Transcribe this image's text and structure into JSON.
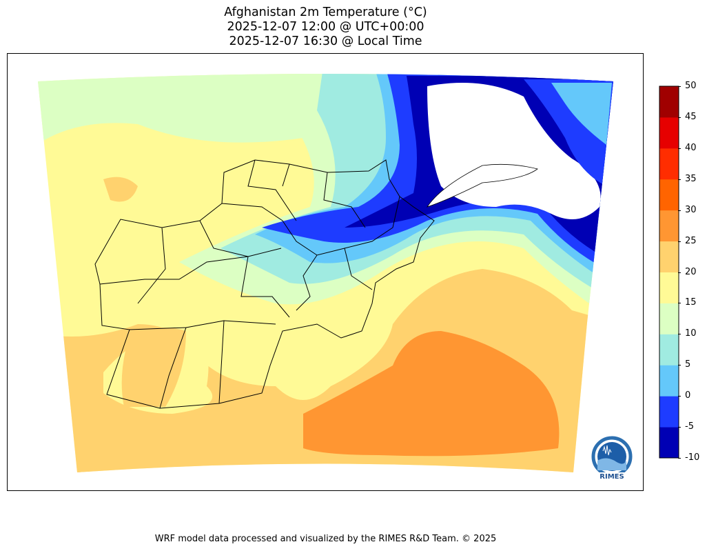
{
  "title": {
    "line1": "Afghanistan 2m Temperature (°C)",
    "line2": "2025-12-07 12:00 @ UTC+00:00",
    "line3": "2025-12-07 16:30 @ Local Time"
  },
  "colorbar": {
    "ticks": [
      "50",
      "45",
      "40",
      "35",
      "30",
      "25",
      "20",
      "15",
      "10",
      "5",
      "0",
      "-5",
      "-10"
    ],
    "levels": [
      -10,
      -5,
      0,
      5,
      10,
      15,
      20,
      25,
      30,
      35,
      40,
      45,
      50
    ],
    "colors": [
      "#0000b4",
      "#1e3cff",
      "#64c8fa",
      "#a0ebe1",
      "#dcffc3",
      "#fffa96",
      "#ffd26e",
      "#ff9632",
      "#ff6400",
      "#ff2d00",
      "#e60000",
      "#a00000"
    ]
  },
  "logo": {
    "text": "RIMES",
    "ring_text": "Regional Integrated Multi-Hazard Early Warning System"
  },
  "footer": "WRF model data processed and visualized by the RIMES R&D Team. © 2025"
}
